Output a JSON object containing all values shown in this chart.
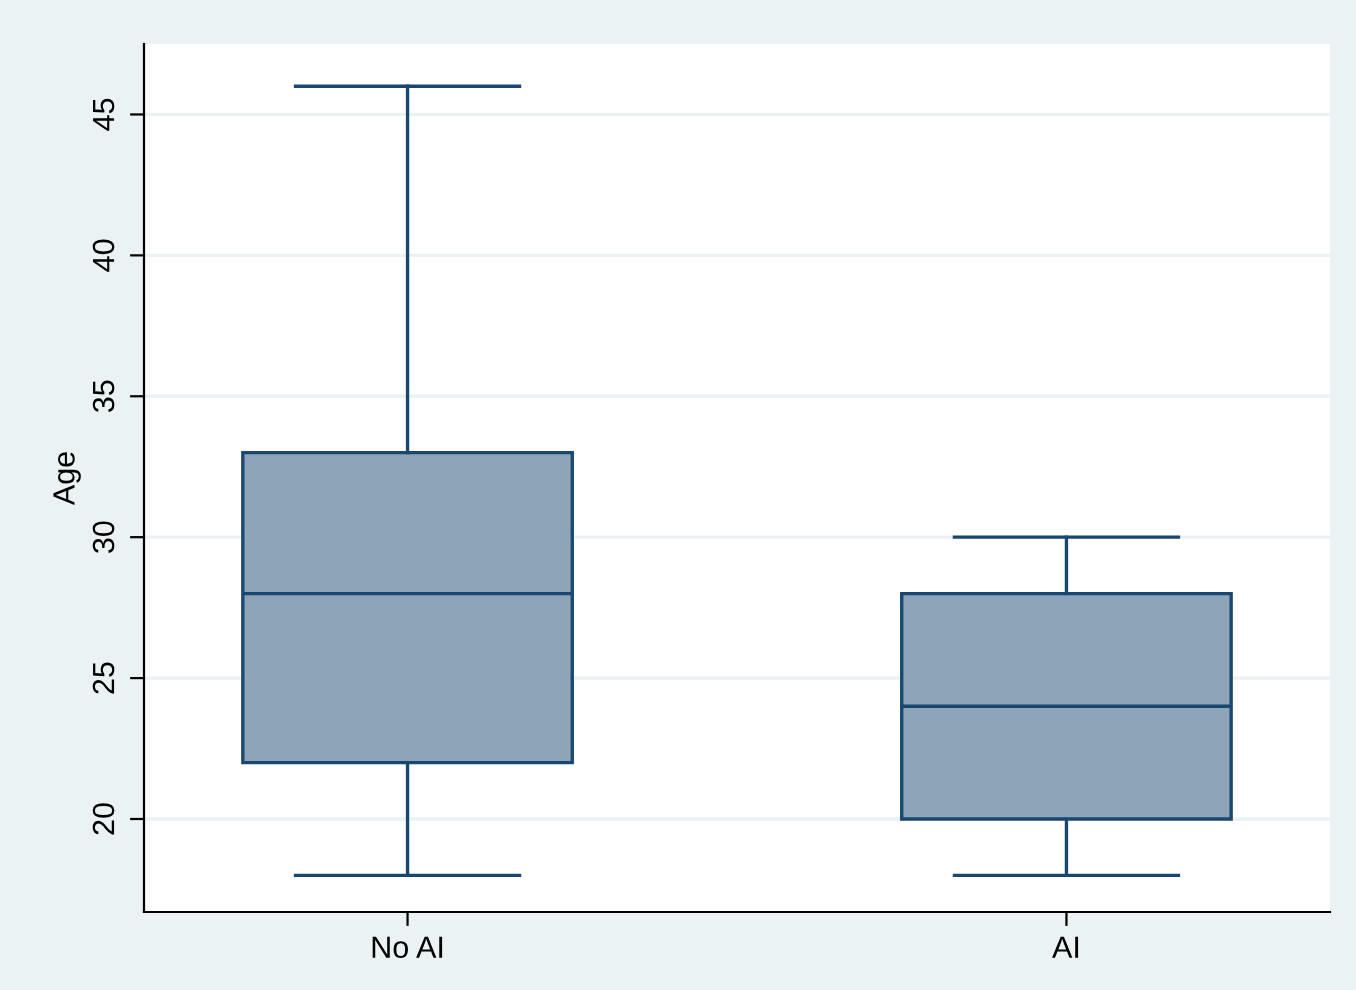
{
  "chart_data": {
    "type": "box",
    "ylabel": "Age",
    "categories": [
      "No AI",
      "AI"
    ],
    "boxes": [
      {
        "low": 18,
        "q1": 22,
        "median": 28,
        "q3": 33,
        "high": 46
      },
      {
        "low": 18,
        "q1": 20,
        "median": 24,
        "q3": 28,
        "high": 30
      }
    ],
    "color": "#8da4b9",
    "ylim": [
      16.7,
      47.5
    ],
    "yticks": [
      20,
      25,
      30,
      35,
      40,
      45
    ],
    "grid": "y"
  }
}
